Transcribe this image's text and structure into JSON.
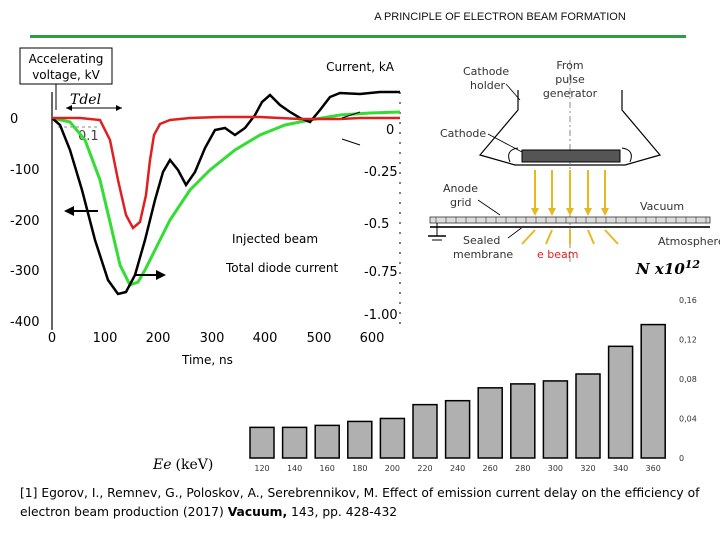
{
  "header": {
    "title": "A PRINCIPLE OF ELECTRON BEAM FORMATION"
  },
  "oscillogram": {
    "left_axis_label": "Accelerating voltage, kV",
    "right_axis_label": "Current, kA",
    "time_label": "Time, ns",
    "delay_label": "Tdel",
    "delay_value": "0.1",
    "injected_label": "Injected beam",
    "diode_label": "Total diode current",
    "left_ticks": [
      "0",
      "-100",
      "-200",
      "-300",
      "-400"
    ],
    "right_ticks": [
      "0",
      "-0.25",
      "-0.5",
      "-0.75",
      "-1.00"
    ],
    "x_ticks": [
      "0",
      "100",
      "200",
      "300",
      "400",
      "500",
      "600"
    ],
    "colors": {
      "voltage": "#000000",
      "injected": "#e02020",
      "diode": "#33dd33"
    }
  },
  "schematic": {
    "cathode_holder": "Cathode holder",
    "pulse_generator": "From pulse generator",
    "cathode": "Cathode",
    "anode_grid": "Anode grid",
    "vacuum": "Vacuum",
    "sealed_membrane": "Sealed membrane",
    "e_beam": "e beam",
    "atmosphere": "Atmosphere",
    "beam_color": "#e8b820",
    "e_beam_color": "#e02020"
  },
  "bar_chart": {
    "ylabel_main": "N x10",
    "ylabel_exp": "12",
    "xlabel_main": "Ee",
    "xlabel_unit": "(keV)",
    "bar_color": "#b0b0b0"
  },
  "chart_data": {
    "type": "bar",
    "categories": [
      "120",
      "140",
      "160",
      "180",
      "200",
      "220",
      "240",
      "260",
      "280",
      "300",
      "320",
      "340",
      "360"
    ],
    "values": [
      0.031,
      0.031,
      0.033,
      0.037,
      0.04,
      0.054,
      0.058,
      0.071,
      0.075,
      0.078,
      0.085,
      0.113,
      0.135
    ],
    "yticks": [
      "0",
      "0,04",
      "0,08",
      "0,12",
      "0,16"
    ],
    "ylim": [
      0,
      0.17
    ],
    "xlabel": "Ee (keV)",
    "ylabel": "N x10^12"
  },
  "citation": {
    "text": "[1] Egorov, I., Remnev, G., Poloskov, A., Serebrennikov, M. Effect of emission current delay on the efficiency of electron beam production (2017) ",
    "journal": "Vacuum,",
    "rest": " 143, pp. 428-432"
  }
}
